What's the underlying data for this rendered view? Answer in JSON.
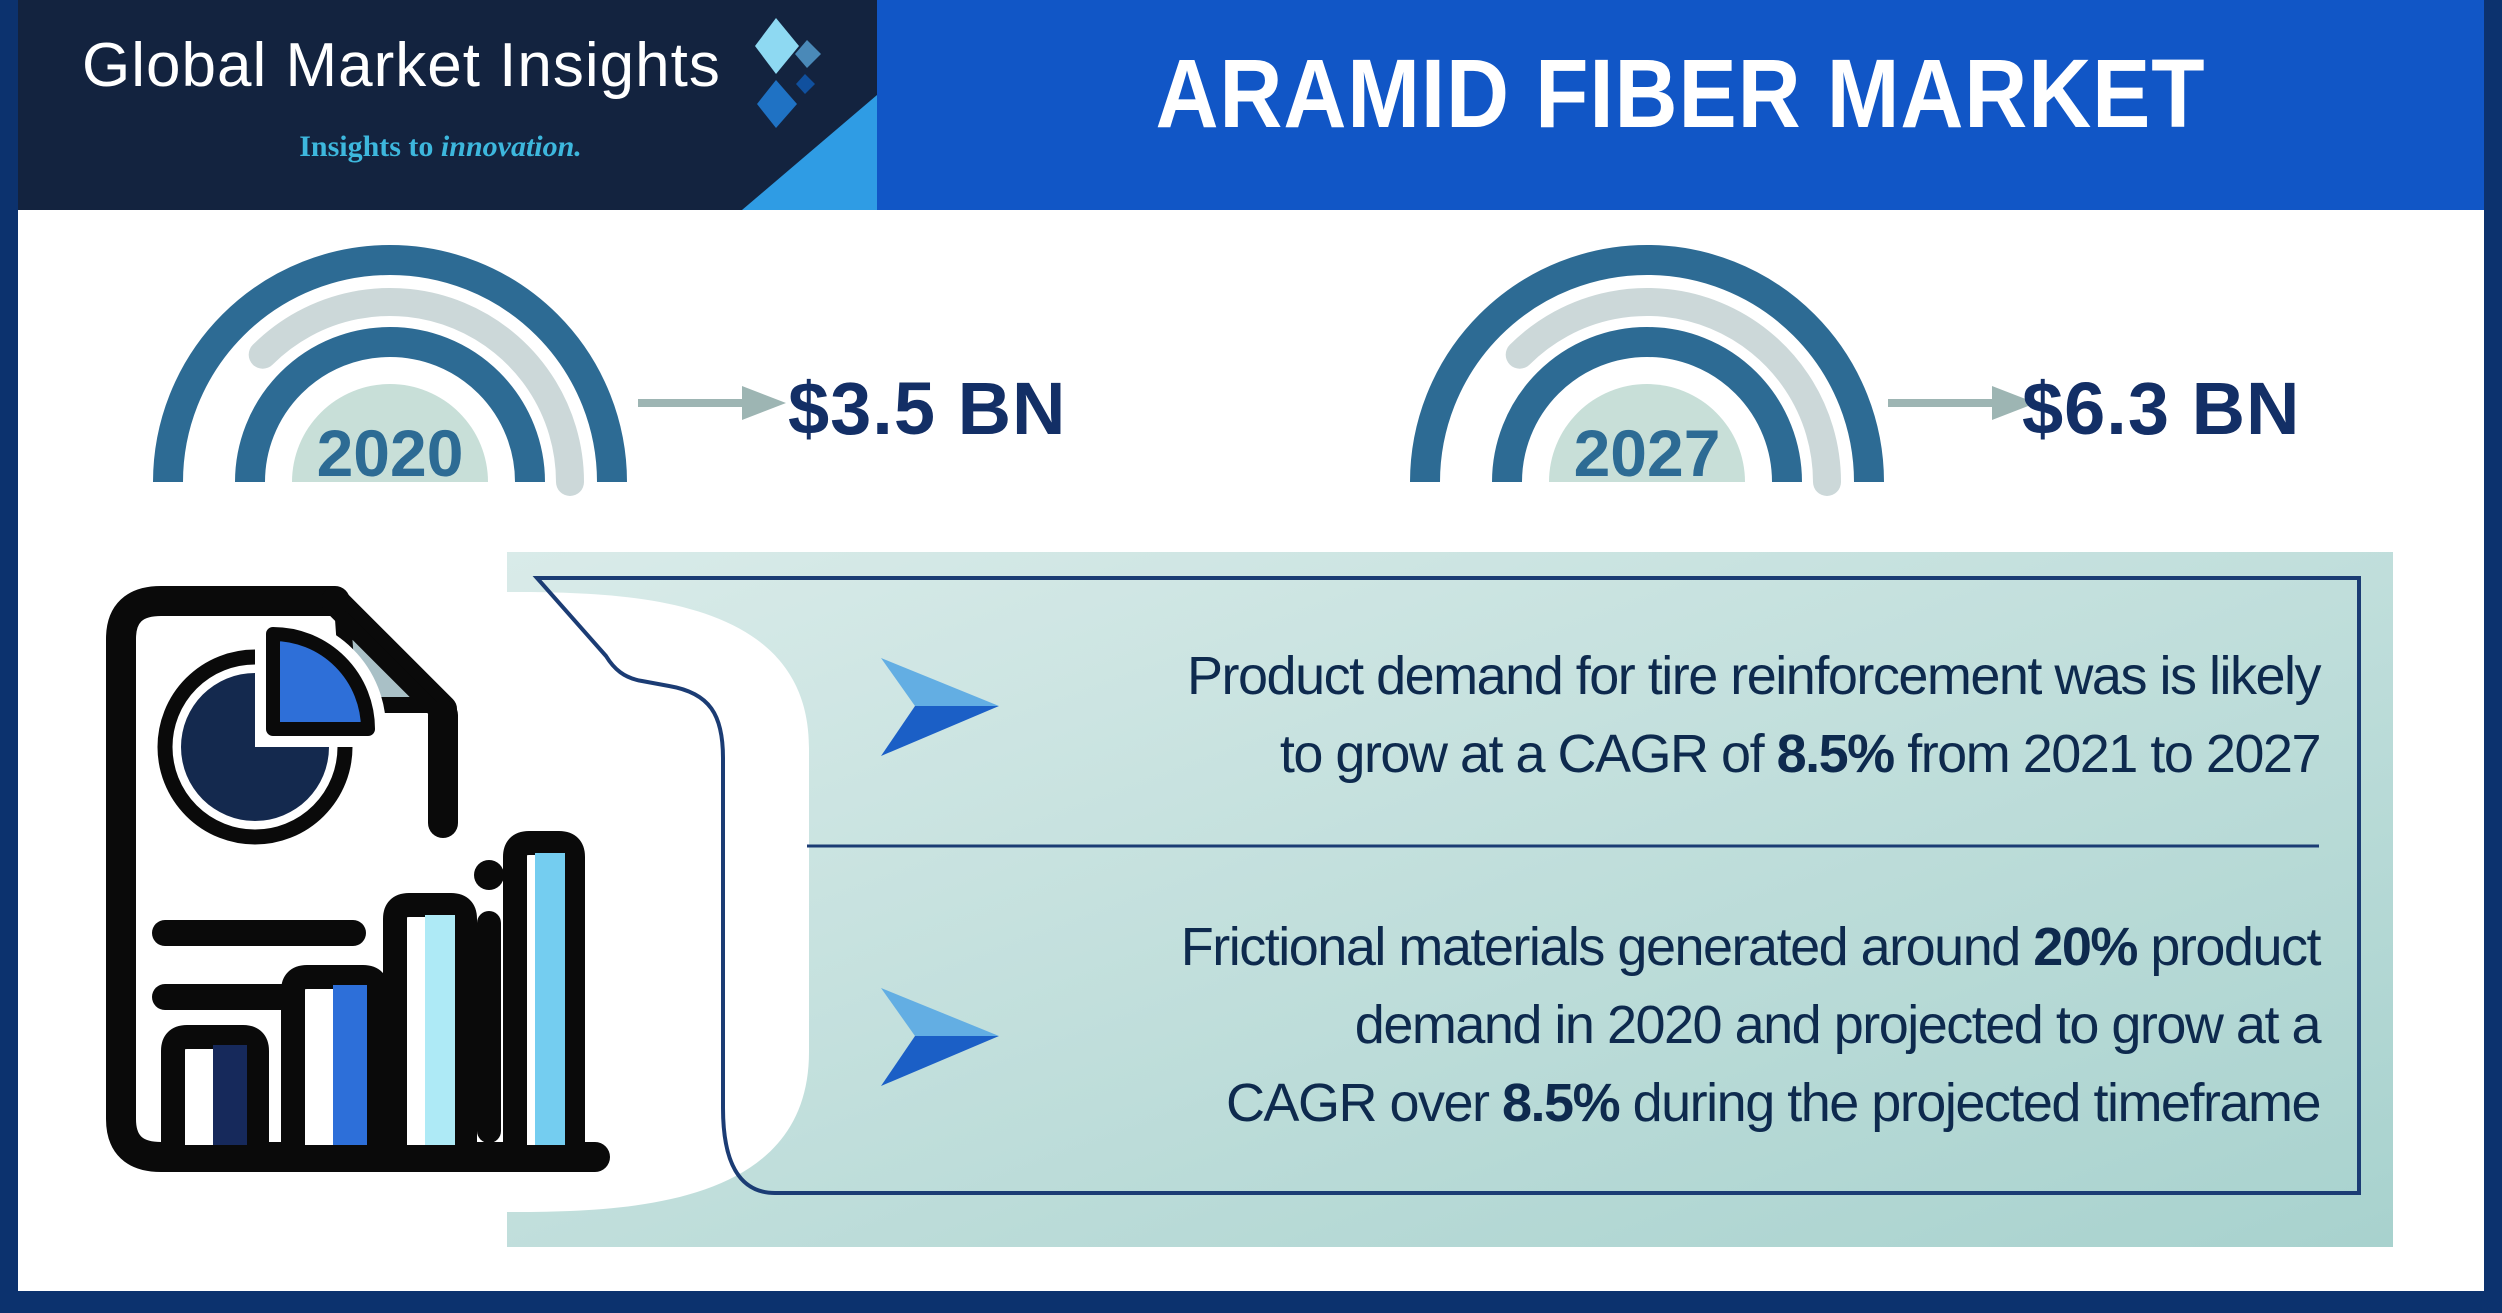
{
  "header": {
    "brand": "Global Market Insights",
    "tagline_plain": "Insights to ",
    "tagline_italic": "innovation.",
    "title": "ARAMID FIBER MARKET"
  },
  "gauges": [
    {
      "year": "2020",
      "value": "$3.5 BN"
    },
    {
      "year": "2027",
      "value": "$6.3 BN"
    }
  ],
  "insights": [
    {
      "lines": [
        [
          {
            "text": "Product demand for tire reinforcement was is likely"
          }
        ],
        [
          {
            "text": "to grow at a CAGR of "
          },
          {
            "text": "8.5%",
            "bold": true
          },
          {
            "text": " from 2021 to 2027"
          }
        ]
      ]
    },
    {
      "lines": [
        [
          {
            "text": "Frictional materials generated around "
          },
          {
            "text": "20%",
            "bold": true
          },
          {
            "text": " product"
          }
        ],
        [
          {
            "text": "demand in 2020 and projected to grow at a"
          }
        ],
        [
          {
            "text": "CAGR over "
          },
          {
            "text": "8.5%",
            "bold": true
          },
          {
            "text": " during the projected timeframe"
          }
        ]
      ]
    }
  ],
  "colors": {
    "header_band": "#1156c6",
    "logo_box": "#13233f",
    "accent_wedge": "#2f9ce4",
    "tagline": "#3db7dd",
    "gauge_blue": "#2d6b94",
    "gauge_gray": "#ccd8d9",
    "gauge_fill": "#c8dfd8",
    "value_navy": "#132f66",
    "arrow_gray": "#9db5b3",
    "panel_teal_light": "#d9ebe9",
    "panel_teal_dark": "#a8d2ce",
    "panel_border": "#1b3c74",
    "text_navy": "#0e2a4e",
    "frame_navy": "#0c326e",
    "chevron_light": "#63aee3",
    "chevron_dark": "#1b5fc6"
  },
  "chart_data": {
    "type": "bar",
    "title": "Aramid Fiber Market size",
    "unit": "USD Billion",
    "categories": [
      "2020",
      "2027"
    ],
    "values": [
      3.5,
      6.3
    ],
    "value_labels": [
      "$3.5 BN",
      "$6.3 BN"
    ],
    "annotations": [
      "Product demand for tire reinforcement was is likely to grow at a CAGR of 8.5% from 2021 to 2027",
      "Frictional materials generated around 20% product demand in 2020 and projected to grow at a CAGR over 8.5% during the projected timeframe"
    ]
  }
}
